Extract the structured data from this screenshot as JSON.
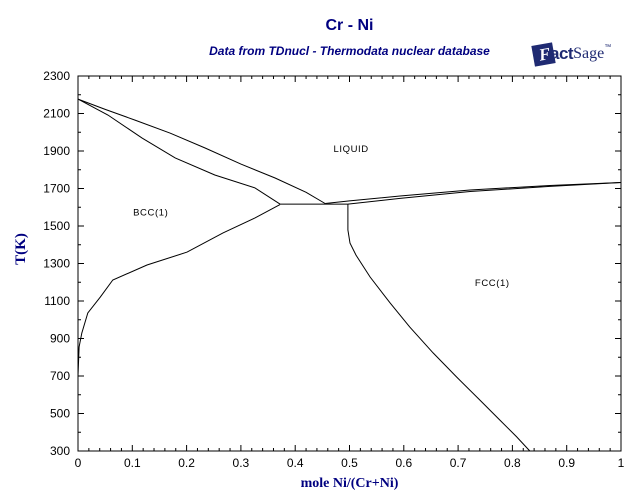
{
  "header": {
    "title": "Cr - Ni",
    "subtitle": "Data from TDnucl - Thermodata nuclear database"
  },
  "logo": {
    "mark_letter": "F",
    "text_bold": "act",
    "text_serif": "Sage",
    "trademark": "™",
    "color": "#1f2a72"
  },
  "colors": {
    "accent_navy": "#000080",
    "curve": "#000000",
    "tick_text": "#000000",
    "background": "#ffffff"
  },
  "chart_data": {
    "type": "line",
    "title": "Cr - Ni",
    "subtitle": "Data from TDnucl - Thermodata nuclear database",
    "xlabel": "mole Ni/(Cr+Ni)",
    "ylabel": "T(K)",
    "xlim": [
      0,
      1
    ],
    "ylim": [
      300,
      2300
    ],
    "x_tick_labels": [
      "0",
      "0.1",
      "0.2",
      "0.3",
      "0.4",
      "0.5",
      "0.6",
      "0.7",
      "0.8",
      "0.9",
      "1"
    ],
    "y_tick_labels": [
      "300",
      "500",
      "700",
      "900",
      "1100",
      "1300",
      "1500",
      "1700",
      "1900",
      "2100",
      "2300"
    ],
    "x_minor_step": 0.02,
    "y_minor_step": 100,
    "grid": false,
    "legend": "none",
    "series": [
      {
        "name": "liquidus-Cr-side",
        "points": [
          [
            0,
            2177
          ],
          [
            0.05,
            2122
          ],
          [
            0.105,
            2065
          ],
          [
            0.17,
            1995
          ],
          [
            0.234,
            1916
          ],
          [
            0.3,
            1830
          ],
          [
            0.363,
            1756
          ],
          [
            0.42,
            1680
          ],
          [
            0.455,
            1620
          ]
        ]
      },
      {
        "name": "bcc-solidus",
        "points": [
          [
            0,
            2177
          ],
          [
            0.055,
            2092
          ],
          [
            0.118,
            1969
          ],
          [
            0.179,
            1863
          ],
          [
            0.252,
            1772
          ],
          [
            0.326,
            1703
          ],
          [
            0.372,
            1617
          ]
        ]
      },
      {
        "name": "eutectic-tie-line",
        "points": [
          [
            0.372,
            1617
          ],
          [
            0.497,
            1617
          ]
        ]
      },
      {
        "name": "liquidus-Ni-side",
        "points": [
          [
            0.455,
            1620
          ],
          [
            0.5,
            1634
          ],
          [
            0.593,
            1660
          ],
          [
            0.722,
            1692
          ],
          [
            0.869,
            1716
          ],
          [
            1,
            1732
          ]
        ]
      },
      {
        "name": "fcc-solidus",
        "points": [
          [
            0.497,
            1617
          ],
          [
            0.593,
            1647
          ],
          [
            0.722,
            1684
          ],
          [
            0.869,
            1711
          ],
          [
            1,
            1732
          ]
        ]
      },
      {
        "name": "bcc-solvus",
        "points": [
          [
            0.372,
            1614
          ],
          [
            0.326,
            1543
          ],
          [
            0.267,
            1463
          ],
          [
            0.201,
            1361
          ],
          [
            0.127,
            1292
          ],
          [
            0.064,
            1212
          ],
          [
            0.041,
            1121
          ],
          [
            0.018,
            1036
          ],
          [
            0.007,
            929
          ],
          [
            0.002,
            855
          ],
          [
            0,
            700
          ]
        ]
      },
      {
        "name": "fcc-solvus",
        "points": [
          [
            0.497,
            1617
          ],
          [
            0.497,
            1479
          ],
          [
            0.501,
            1409
          ],
          [
            0.512,
            1345
          ],
          [
            0.538,
            1228
          ],
          [
            0.575,
            1089
          ],
          [
            0.611,
            961
          ],
          [
            0.654,
            823
          ],
          [
            0.697,
            695
          ],
          [
            0.74,
            572
          ],
          [
            0.777,
            465
          ],
          [
            0.808,
            375
          ],
          [
            0.832,
            300
          ]
        ]
      }
    ],
    "region_labels": [
      {
        "text": "LIQUID",
        "x": 0.503,
        "T": 1910
      },
      {
        "text": "BCC(1)",
        "x": 0.134,
        "T": 1572
      },
      {
        "text": "FCC(1)",
        "x": 0.763,
        "T": 1196
      }
    ]
  }
}
